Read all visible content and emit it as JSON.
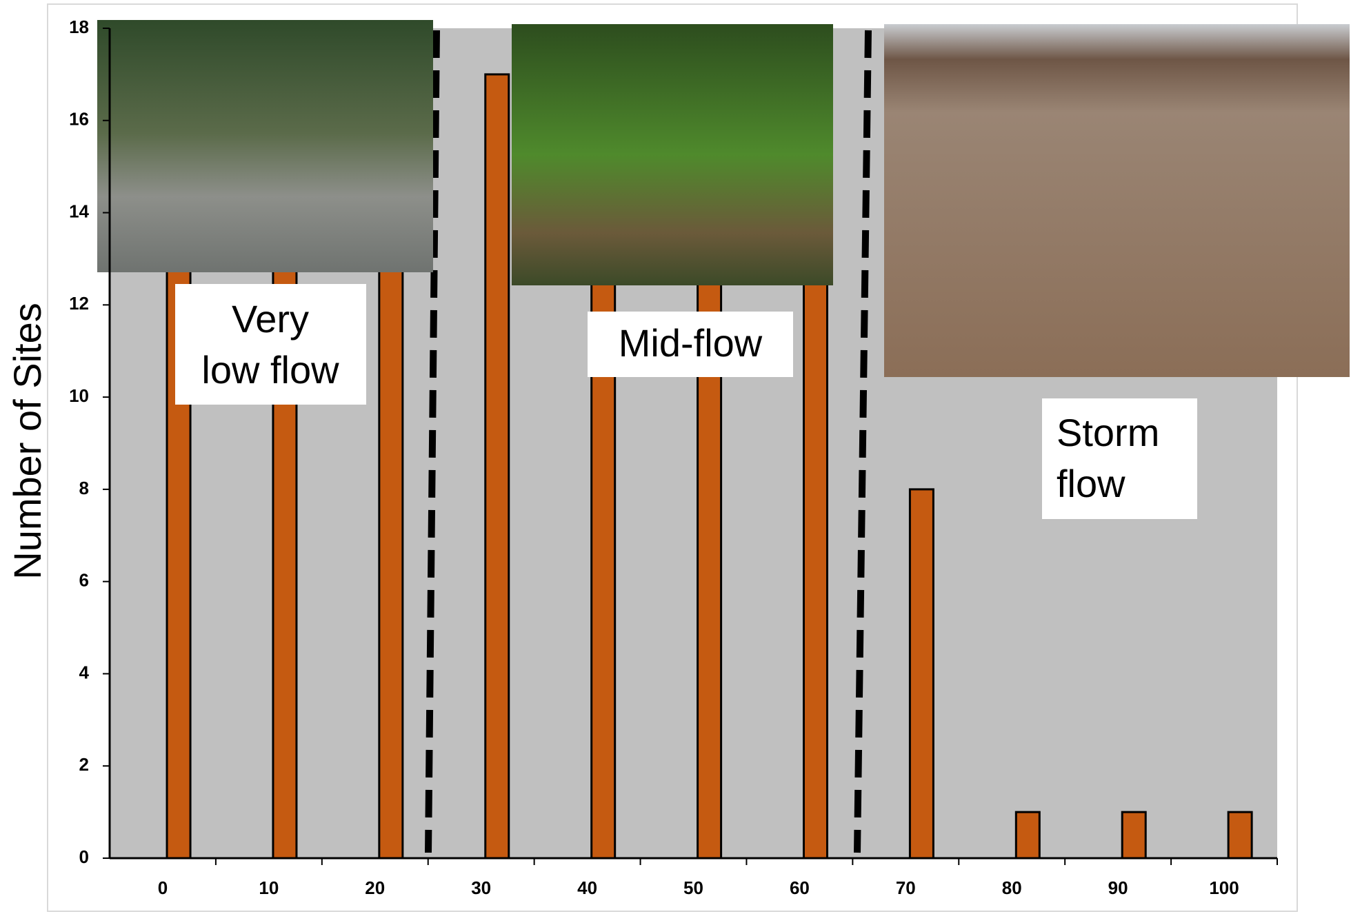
{
  "chart_data": {
    "type": "bar",
    "categories": [
      "0",
      "10",
      "20",
      "30",
      "40",
      "50",
      "60",
      "70",
      "80",
      "90",
      "100"
    ],
    "values": [
      14,
      14,
      14,
      17,
      13,
      13,
      13,
      8,
      1,
      1,
      1
    ],
    "color": "#c55a11",
    "ylabel": "Number of Sites",
    "ylim": [
      0,
      18
    ],
    "yticks": [
      0,
      2,
      4,
      6,
      8,
      10,
      12,
      14,
      16,
      18
    ],
    "annotations": [
      {
        "lines": [
          "Very",
          "low flow"
        ]
      },
      {
        "lines": [
          "Mid-flow"
        ]
      },
      {
        "lines": [
          "Storm",
          "flow"
        ]
      }
    ]
  }
}
